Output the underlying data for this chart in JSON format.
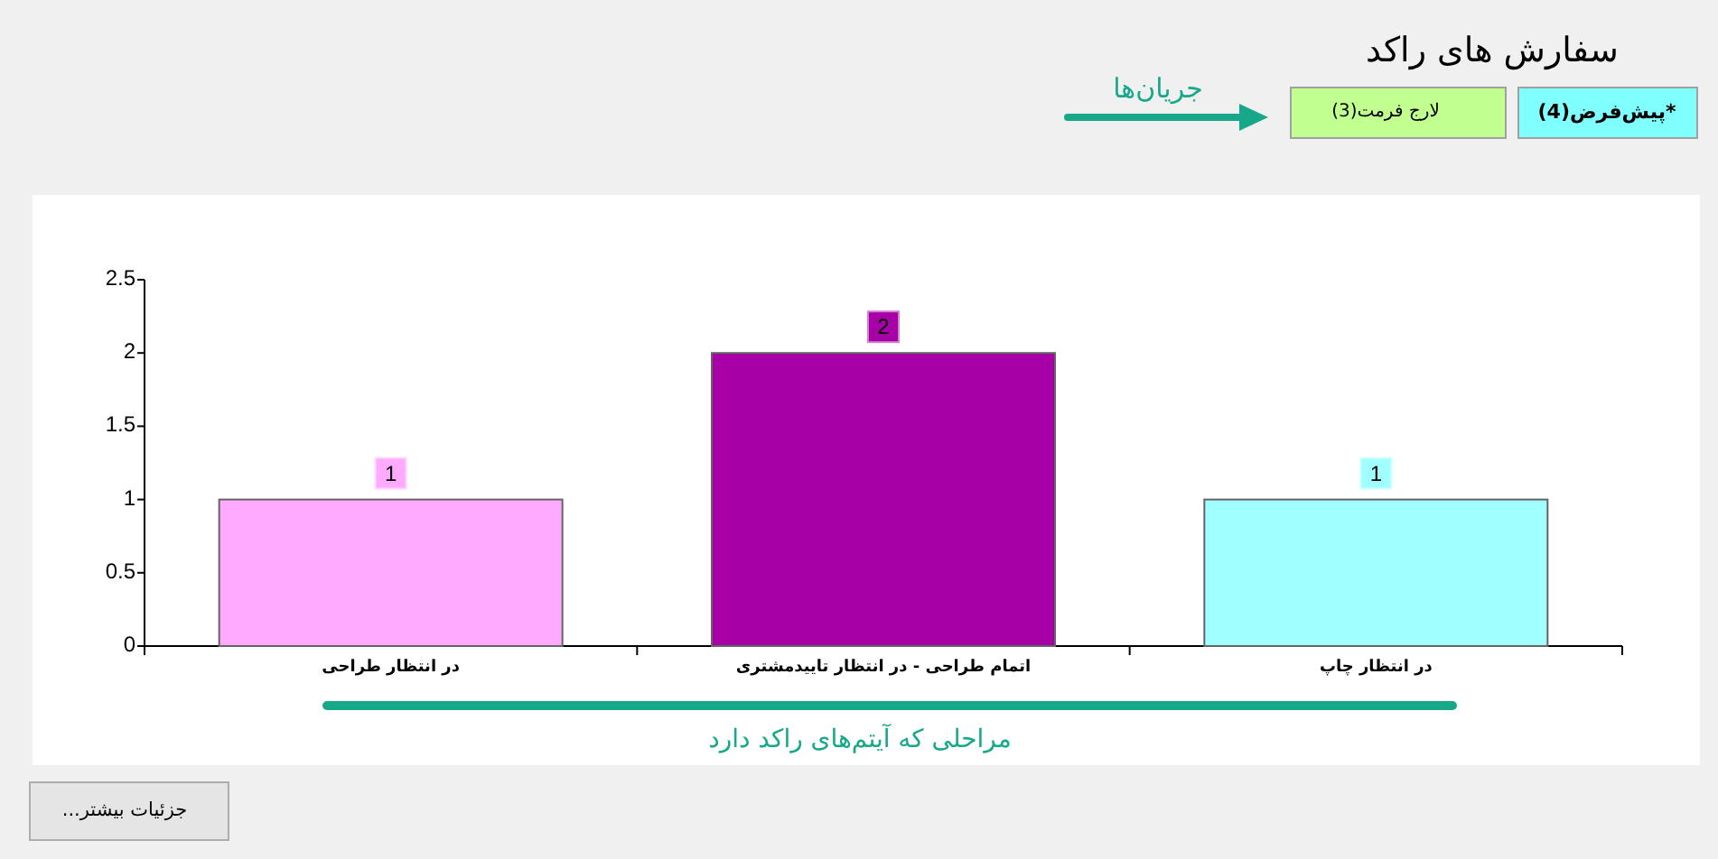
{
  "chart_data": {
    "type": "bar",
    "title": "سفارش های راکد",
    "categories": [
      "در انتظار طراحی",
      "اتمام طراحی - در انتظار تاییدمشتری",
      "در انتظار چاپ"
    ],
    "values": [
      1,
      2,
      1
    ],
    "colors": [
      "#ffaaff",
      "#a600a6",
      "#a0ffff"
    ],
    "ylim": [
      0,
      2.5
    ],
    "yticks": [
      0,
      0.5,
      1,
      1.5,
      2,
      2.5
    ],
    "data_labels": true,
    "annotations": [
      "جریان‌ها",
      "*پیش‌فرض(4)",
      "لارج فرمت(3)",
      "مراحلی که آیتم‌های راکد دارد",
      "جزئیات بیشتر..."
    ]
  }
}
